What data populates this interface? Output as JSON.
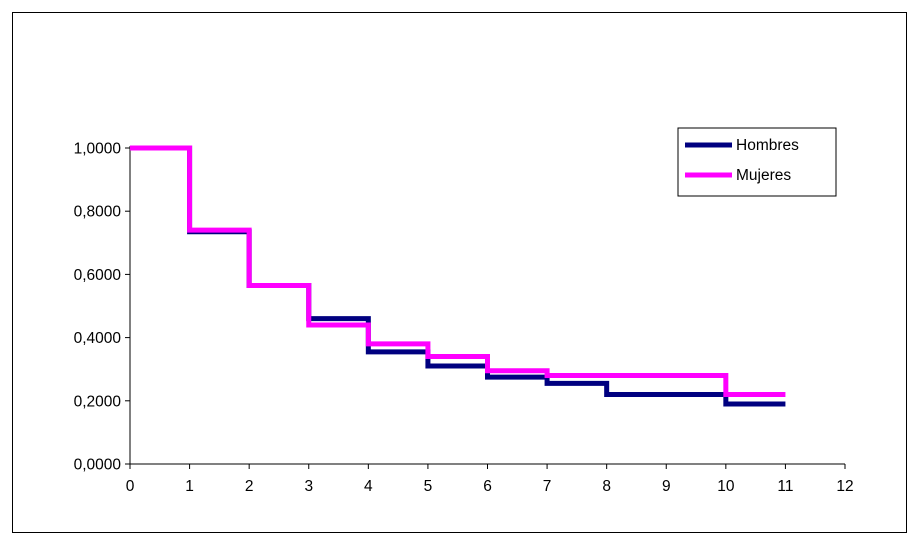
{
  "chart_data": {
    "type": "line",
    "step": true,
    "title": "",
    "xlabel": "",
    "ylabel": "",
    "xlim": [
      0,
      12
    ],
    "ylim": [
      0,
      1
    ],
    "x_ticks": [
      "0",
      "1",
      "2",
      "3",
      "4",
      "5",
      "6",
      "7",
      "8",
      "9",
      "10",
      "11",
      "12"
    ],
    "y_ticks": [
      "0,0000",
      "0,2000",
      "0,4000",
      "0,6000",
      "0,8000",
      "1,0000"
    ],
    "y_tick_values": [
      0,
      0.2,
      0.4,
      0.6,
      0.8,
      1.0
    ],
    "grid": false,
    "legend_position": "top-right",
    "series": [
      {
        "name": "Hombres",
        "color": "#000080",
        "x": [
          0,
          1,
          2,
          3,
          4,
          5,
          6,
          7,
          8,
          9,
          10,
          11
        ],
        "y": [
          1.0,
          0.735,
          0.565,
          0.46,
          0.355,
          0.31,
          0.275,
          0.255,
          0.22,
          0.22,
          0.19,
          0.19
        ]
      },
      {
        "name": "Mujeres",
        "color": "#FF00FF",
        "x": [
          0,
          1,
          2,
          3,
          4,
          5,
          6,
          7,
          8,
          9,
          10,
          11
        ],
        "y": [
          1.0,
          0.74,
          0.565,
          0.44,
          0.38,
          0.34,
          0.295,
          0.28,
          0.28,
          0.28,
          0.22,
          0.22
        ]
      }
    ]
  }
}
